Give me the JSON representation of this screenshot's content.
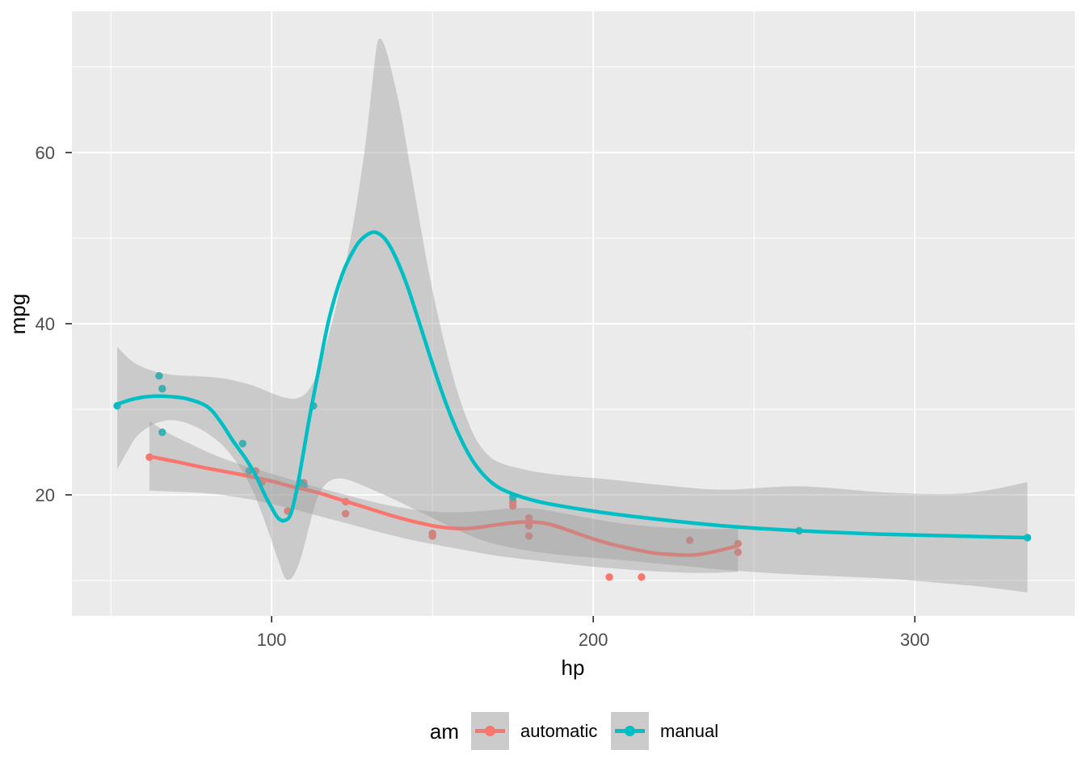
{
  "chart_data": {
    "type": "scatter",
    "title": "",
    "xlabel": "hp",
    "ylabel": "mpg",
    "x_domain": [
      37.9,
      349.7
    ],
    "y_domain": [
      5.85,
      76.5
    ],
    "x_ticks_major": [
      100,
      200,
      300
    ],
    "x_ticks_minor": [
      50,
      150,
      250
    ],
    "y_ticks_major": [
      20,
      40,
      60
    ],
    "y_ticks_minor": [
      10,
      30,
      50,
      70
    ],
    "grid": true,
    "legend": {
      "title": "am",
      "position": "bottom",
      "entries": [
        {
          "label": "automatic",
          "color": "#F8766D"
        },
        {
          "label": "manual",
          "color": "#00BFC4"
        }
      ]
    },
    "colors": {
      "panel_bg": "#EBEBEB",
      "grid": "#FFFFFF",
      "ribbon_fill": "#999999",
      "ribbon_alpha": 0.4,
      "axis_text": "#4D4D4D",
      "axis_title": "#000000",
      "tick_mark": "#333333",
      "legend_key_bg": "#CBCBCB",
      "automatic": "#F8766D",
      "manual": "#00BFC4"
    },
    "series": [
      {
        "name": "automatic",
        "color": "#F8766D",
        "points": [
          [
            110,
            21.4
          ],
          [
            175,
            18.7
          ],
          [
            105,
            18.1
          ],
          [
            245,
            14.3
          ],
          [
            62,
            24.4
          ],
          [
            95,
            22.8
          ],
          [
            123,
            19.2
          ],
          [
            123,
            17.8
          ],
          [
            180,
            16.4
          ],
          [
            180,
            17.3
          ],
          [
            180,
            15.2
          ],
          [
            205,
            10.4
          ],
          [
            215,
            10.4
          ],
          [
            230,
            14.7
          ],
          [
            97,
            21.5
          ],
          [
            150,
            15.5
          ],
          [
            150,
            15.2
          ],
          [
            245,
            13.3
          ],
          [
            175,
            19.2
          ]
        ],
        "smooth": [
          [
            62,
            24.5
          ],
          [
            70,
            23.9
          ],
          [
            80,
            23.1
          ],
          [
            90,
            22.4
          ],
          [
            100,
            21.6
          ],
          [
            106,
            21.0
          ],
          [
            114,
            20.3
          ],
          [
            120,
            19.6
          ],
          [
            126,
            18.9
          ],
          [
            132,
            18.2
          ],
          [
            138,
            17.5
          ],
          [
            144,
            16.9
          ],
          [
            150,
            16.4
          ],
          [
            156,
            16.1
          ],
          [
            162,
            16.1
          ],
          [
            168,
            16.4
          ],
          [
            174,
            16.7
          ],
          [
            180,
            16.85
          ],
          [
            186,
            16.6
          ],
          [
            192,
            15.9
          ],
          [
            198,
            15.1
          ],
          [
            205,
            14.3
          ],
          [
            212,
            13.7
          ],
          [
            219,
            13.2
          ],
          [
            226,
            13.0
          ],
          [
            232,
            13.0
          ],
          [
            238,
            13.4
          ],
          [
            245,
            14.05
          ]
        ],
        "ribbon_upper": [
          [
            62,
            28.6
          ],
          [
            68,
            27.2
          ],
          [
            75,
            25.9
          ],
          [
            82,
            24.7
          ],
          [
            90,
            23.6
          ],
          [
            97,
            22.8
          ],
          [
            105,
            21.9
          ],
          [
            112,
            21.1
          ],
          [
            120,
            20.3
          ],
          [
            128,
            19.5
          ],
          [
            136,
            18.8
          ],
          [
            144,
            18.3
          ],
          [
            152,
            18.0
          ],
          [
            160,
            18.0
          ],
          [
            168,
            18.2
          ],
          [
            175,
            18.45
          ],
          [
            182,
            18.4
          ],
          [
            190,
            17.9
          ],
          [
            200,
            17.2
          ],
          [
            210,
            16.6
          ],
          [
            220,
            16.25
          ],
          [
            230,
            16.05
          ],
          [
            238,
            16.0
          ],
          [
            245,
            16.05
          ]
        ],
        "ribbon_lower": [
          [
            62,
            20.5
          ],
          [
            68,
            20.4
          ],
          [
            75,
            20.3
          ],
          [
            82,
            20.1
          ],
          [
            90,
            19.7
          ],
          [
            97,
            19.2
          ],
          [
            105,
            18.5
          ],
          [
            112,
            17.8
          ],
          [
            120,
            17.0
          ],
          [
            128,
            16.2
          ],
          [
            136,
            15.4
          ],
          [
            144,
            14.7
          ],
          [
            152,
            14.1
          ],
          [
            160,
            13.55
          ],
          [
            168,
            13.0
          ],
          [
            175,
            12.65
          ],
          [
            182,
            12.35
          ],
          [
            190,
            12.0
          ],
          [
            200,
            11.6
          ],
          [
            210,
            11.3
          ],
          [
            220,
            11.05
          ],
          [
            230,
            10.9
          ],
          [
            238,
            10.9
          ],
          [
            245,
            11.0
          ]
        ]
      },
      {
        "name": "manual",
        "color": "#00BFC4",
        "points": [
          [
            110,
            21.0
          ],
          [
            110,
            21.0
          ],
          [
            93,
            22.8
          ],
          [
            66,
            32.4
          ],
          [
            52,
            30.4
          ],
          [
            65,
            33.9
          ],
          [
            66,
            27.3
          ],
          [
            91,
            26.0
          ],
          [
            113,
            30.4
          ],
          [
            264,
            15.8
          ],
          [
            175,
            19.7
          ],
          [
            335,
            15.0
          ],
          [
            109,
            21.4
          ]
        ],
        "smooth": [
          [
            52,
            30.6
          ],
          [
            57,
            31.2
          ],
          [
            62,
            31.5
          ],
          [
            68,
            31.5
          ],
          [
            74,
            31.2
          ],
          [
            80,
            30.3
          ],
          [
            84,
            28.6
          ],
          [
            88,
            26.3
          ],
          [
            92,
            24.2
          ],
          [
            95,
            22.3
          ],
          [
            98,
            19.9
          ],
          [
            100,
            18.5
          ],
          [
            102,
            17.3
          ],
          [
            104,
            17.0
          ],
          [
            106,
            17.8
          ],
          [
            108,
            21.0
          ],
          [
            110,
            25.2
          ],
          [
            112,
            29.5
          ],
          [
            115,
            35.3
          ],
          [
            118,
            40.8
          ],
          [
            122,
            45.8
          ],
          [
            126,
            48.9
          ],
          [
            129,
            50.2
          ],
          [
            132,
            50.7
          ],
          [
            135,
            50.0
          ],
          [
            138,
            48.2
          ],
          [
            142,
            44.6
          ],
          [
            146,
            40.0
          ],
          [
            150,
            35.3
          ],
          [
            154,
            30.9
          ],
          [
            158,
            27.2
          ],
          [
            162,
            24.3
          ],
          [
            166,
            22.3
          ],
          [
            170,
            21.0
          ],
          [
            175,
            20.1
          ],
          [
            182,
            19.3
          ],
          [
            190,
            18.7
          ],
          [
            200,
            18.1
          ],
          [
            212,
            17.5
          ],
          [
            226,
            16.9
          ],
          [
            240,
            16.4
          ],
          [
            255,
            16.0
          ],
          [
            270,
            15.7
          ],
          [
            290,
            15.4
          ],
          [
            312,
            15.2
          ],
          [
            335,
            15.0
          ]
        ],
        "ribbon_upper": [
          [
            52,
            37.3
          ],
          [
            56,
            35.8
          ],
          [
            60,
            34.9
          ],
          [
            65,
            34.3
          ],
          [
            70,
            34.0
          ],
          [
            75,
            33.9
          ],
          [
            80,
            33.8
          ],
          [
            85,
            33.6
          ],
          [
            90,
            33.2
          ],
          [
            94,
            32.8
          ],
          [
            98,
            32.2
          ],
          [
            102,
            31.6
          ],
          [
            105,
            31.3
          ],
          [
            108,
            31.3
          ],
          [
            111,
            32.0
          ],
          [
            114,
            34.0
          ],
          [
            117,
            37.6
          ],
          [
            120,
            42.0
          ],
          [
            123,
            47.0
          ],
          [
            126,
            53.0
          ],
          [
            129,
            60.5
          ],
          [
            131,
            67.0
          ],
          [
            132.5,
            72.0
          ],
          [
            133.5,
            73.3
          ],
          [
            135,
            72.6
          ],
          [
            137,
            70.0
          ],
          [
            140,
            65.0
          ],
          [
            143,
            58.5
          ],
          [
            146,
            52.0
          ],
          [
            149,
            45.8
          ],
          [
            152,
            40.5
          ],
          [
            155,
            35.8
          ],
          [
            158,
            31.8
          ],
          [
            161,
            28.6
          ],
          [
            164,
            26.2
          ],
          [
            168,
            24.4
          ],
          [
            172,
            23.6
          ],
          [
            176,
            23.2
          ],
          [
            182,
            22.7
          ],
          [
            190,
            22.3
          ],
          [
            205,
            21.8
          ],
          [
            220,
            21.2
          ],
          [
            240,
            20.6
          ],
          [
            264,
            21.0
          ],
          [
            290,
            20.3
          ],
          [
            310,
            20.1
          ],
          [
            322,
            20.5
          ],
          [
            335,
            21.5
          ]
        ],
        "ribbon_lower": [
          [
            52,
            23.0
          ],
          [
            55,
            25.0
          ],
          [
            58,
            26.8
          ],
          [
            62,
            28.0
          ],
          [
            66,
            28.6
          ],
          [
            70,
            28.7
          ],
          [
            75,
            28.2
          ],
          [
            80,
            27.2
          ],
          [
            85,
            25.7
          ],
          [
            90,
            23.3
          ],
          [
            94,
            20.6
          ],
          [
            97,
            17.8
          ],
          [
            100,
            14.6
          ],
          [
            102,
            12.4
          ],
          [
            104,
            10.4
          ],
          [
            105.5,
            10.1
          ],
          [
            107,
            10.7
          ],
          [
            109,
            12.5
          ],
          [
            111,
            15.3
          ],
          [
            113,
            18.2
          ],
          [
            115,
            20.3
          ],
          [
            118,
            21.6
          ],
          [
            122,
            21.9
          ],
          [
            127,
            21.3
          ],
          [
            132,
            20.5
          ],
          [
            138,
            19.5
          ],
          [
            144,
            18.4
          ],
          [
            150,
            17.3
          ],
          [
            156,
            16.2
          ],
          [
            162,
            15.2
          ],
          [
            168,
            14.4
          ],
          [
            175,
            13.8
          ],
          [
            183,
            13.3
          ],
          [
            192,
            12.9
          ],
          [
            202,
            12.6
          ],
          [
            214,
            12.2
          ],
          [
            228,
            11.7
          ],
          [
            242,
            11.2
          ],
          [
            258,
            10.8
          ],
          [
            275,
            10.5
          ],
          [
            292,
            10.2
          ],
          [
            308,
            9.7
          ],
          [
            320,
            9.3
          ],
          [
            335,
            8.6
          ]
        ]
      }
    ]
  }
}
